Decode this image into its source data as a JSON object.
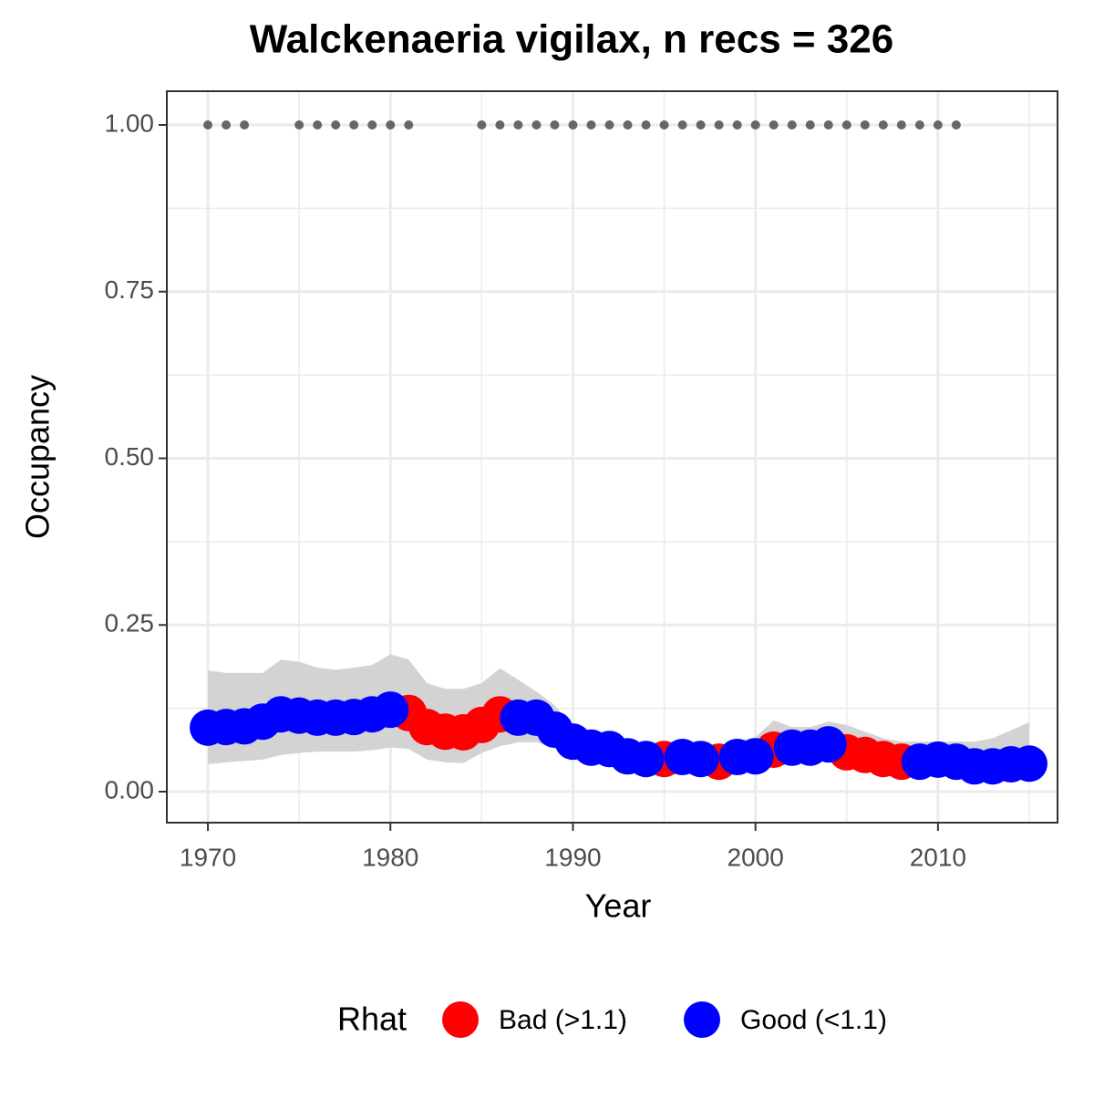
{
  "chart_data": {
    "type": "scatter",
    "title": "Walckenaeria vigilax, n recs = 326",
    "x_label": "Year",
    "y_label": "Occupancy",
    "xlim": [
      1967.75,
      2016.55
    ],
    "ylim": [
      -0.0465,
      1.0506
    ],
    "xticks": [
      1970,
      1980,
      1990,
      2000,
      2010
    ],
    "yticks": [
      {
        "value": 0,
        "label": "0.00"
      },
      {
        "value": 0.25,
        "label": "0.25"
      },
      {
        "value": 0.5,
        "label": "0.50"
      },
      {
        "value": 0.75,
        "label": "0.75"
      },
      {
        "value": 1,
        "label": "1.00"
      }
    ],
    "minor_xticks": [
      1975,
      1985,
      1995,
      2005,
      2015
    ],
    "minor_yticks": [
      0.125,
      0.375,
      0.625,
      0.875
    ],
    "grid": true,
    "legend_title": "Rhat",
    "legend_position": "bottom",
    "band": {
      "color": "#d3d3d3",
      "x": [
        1970,
        1971,
        1972,
        1973,
        1974,
        1975,
        1976,
        1977,
        1978,
        1979,
        1980,
        1981,
        1982,
        1983,
        1984,
        1985,
        1986,
        1987,
        1988,
        1989,
        1990,
        1991,
        1992,
        1993,
        1994,
        1995,
        1996,
        1997,
        1998,
        1999,
        2000,
        2001,
        2002,
        2003,
        2004,
        2005,
        2006,
        2007,
        2008,
        2009,
        2010,
        2011,
        2012,
        2013,
        2014,
        2015
      ],
      "upper": [
        0.182,
        0.178,
        0.178,
        0.178,
        0.198,
        0.195,
        0.186,
        0.183,
        0.186,
        0.19,
        0.206,
        0.198,
        0.163,
        0.154,
        0.154,
        0.163,
        0.185,
        0.168,
        0.15,
        0.13,
        0.095,
        0.085,
        0.08,
        0.07,
        0.065,
        0.065,
        0.066,
        0.066,
        0.066,
        0.075,
        0.082,
        0.107,
        0.097,
        0.097,
        0.105,
        0.1,
        0.09,
        0.08,
        0.075,
        0.075,
        0.075,
        0.075,
        0.075,
        0.08,
        0.092,
        0.104
      ],
      "lower": [
        0.041,
        0.044,
        0.046,
        0.048,
        0.055,
        0.058,
        0.06,
        0.06,
        0.06,
        0.062,
        0.066,
        0.064,
        0.048,
        0.044,
        0.043,
        0.058,
        0.068,
        0.074,
        0.074,
        0.065,
        0.052,
        0.046,
        0.044,
        0.036,
        0.034,
        0.034,
        0.034,
        0.033,
        0.032,
        0.034,
        0.036,
        0.04,
        0.042,
        0.044,
        0.046,
        0.04,
        0.037,
        0.033,
        0.03,
        0.03,
        0.03,
        0.029,
        0.026,
        0.026,
        0.026,
        0.026
      ]
    },
    "record_years": {
      "color": "#666666",
      "x": [
        1970,
        1971,
        1972,
        1975,
        1976,
        1977,
        1978,
        1979,
        1980,
        1981,
        1985,
        1986,
        1987,
        1988,
        1989,
        1990,
        1991,
        1992,
        1993,
        1994,
        1995,
        1996,
        1997,
        1998,
        1999,
        2000,
        2001,
        2002,
        2003,
        2004,
        2005,
        2006,
        2007,
        2008,
        2009,
        2010,
        2011
      ],
      "values": [
        1,
        1,
        1,
        1,
        1,
        1,
        1,
        1,
        1,
        1,
        1,
        1,
        1,
        1,
        1,
        1,
        1,
        1,
        1,
        1,
        1,
        1,
        1,
        1,
        1,
        1,
        1,
        1,
        1,
        1,
        1,
        1,
        1,
        1,
        1,
        1,
        1
      ]
    },
    "series": [
      {
        "name": "Bad (>1.1)",
        "color": "#ff0000",
        "x": [
          1981,
          1982,
          1983,
          1984,
          1985,
          1986,
          1995,
          1998,
          2001,
          2005,
          2006,
          2007,
          2008
        ],
        "values": [
          0.118,
          0.097,
          0.09,
          0.089,
          0.1,
          0.116,
          0.049,
          0.045,
          0.063,
          0.059,
          0.055,
          0.049,
          0.045
        ]
      },
      {
        "name": "Good (<1.1)",
        "color": "#0000ff",
        "x": [
          1970,
          1971,
          1972,
          1973,
          1974,
          1975,
          1976,
          1977,
          1978,
          1979,
          1980,
          1987,
          1988,
          1989,
          1990,
          1991,
          1992,
          1993,
          1994,
          1996,
          1997,
          1999,
          2000,
          2002,
          2003,
          2004,
          2009,
          2010,
          2011,
          2012,
          2013,
          2014,
          2015
        ],
        "values": [
          0.096,
          0.097,
          0.098,
          0.105,
          0.116,
          0.114,
          0.111,
          0.111,
          0.112,
          0.116,
          0.123,
          0.111,
          0.111,
          0.093,
          0.075,
          0.066,
          0.064,
          0.053,
          0.049,
          0.052,
          0.049,
          0.052,
          0.053,
          0.066,
          0.066,
          0.071,
          0.045,
          0.048,
          0.045,
          0.038,
          0.038,
          0.041,
          0.042
        ]
      }
    ]
  }
}
